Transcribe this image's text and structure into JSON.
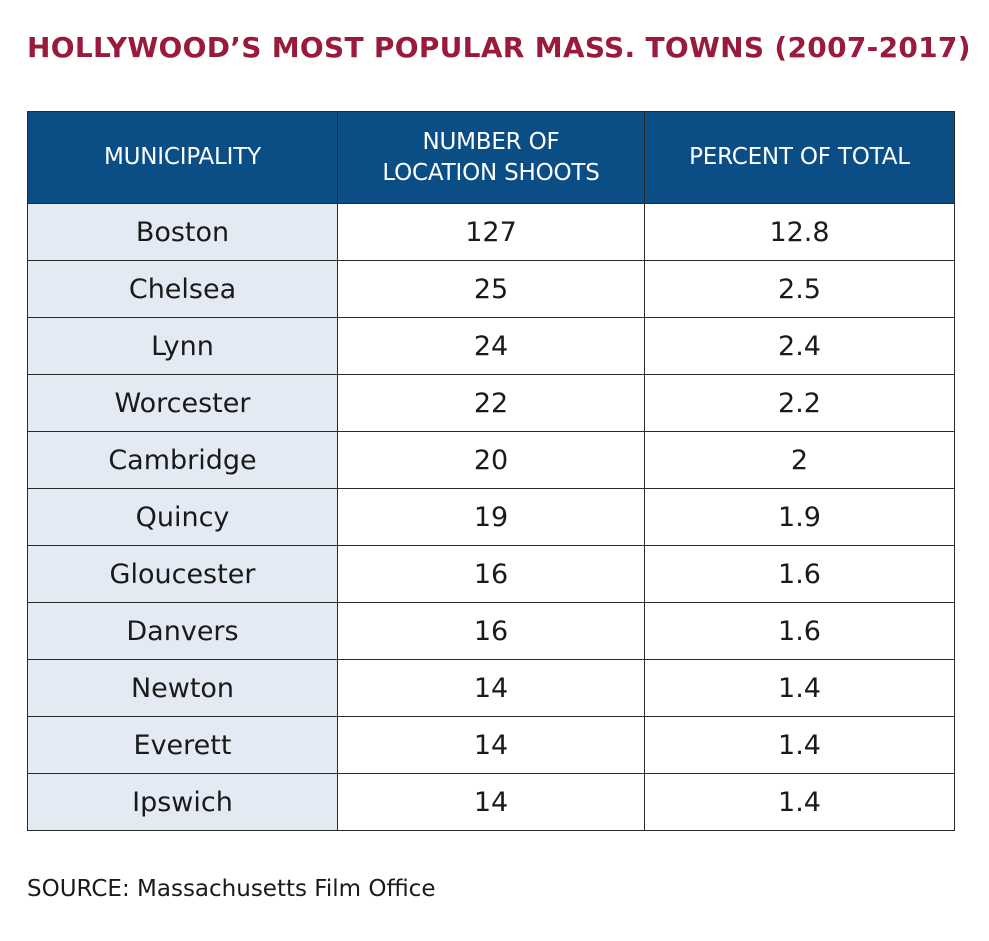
{
  "title": "HOLLYWOOD’S MOST POPULAR MASS. TOWNS (2007-2017)",
  "source": "SOURCE: Massachusetts Film Office",
  "colors": {
    "title": "#9a1a3c",
    "header_bg": "#0b4e86",
    "header_text": "#ffffff",
    "first_column_bg": "#e4eaf4",
    "border": "#2a2a2a"
  },
  "chart_data": {
    "type": "table",
    "title": "HOLLYWOOD’S MOST POPULAR MASS. TOWNS (2007-2017)",
    "columns": [
      "MUNICIPALITY",
      "NUMBER OF\nLOCATION SHOOTS",
      "PERCENT OF TOTAL"
    ],
    "rows": [
      [
        "Boston",
        "127",
        "12.8"
      ],
      [
        "Chelsea",
        "25",
        "2.5"
      ],
      [
        "Lynn",
        "24",
        "2.4"
      ],
      [
        "Worcester",
        "22",
        "2.2"
      ],
      [
        "Cambridge",
        "20",
        "2"
      ],
      [
        "Quincy",
        "19",
        "1.9"
      ],
      [
        "Gloucester",
        "16",
        "1.6"
      ],
      [
        "Danvers",
        "16",
        "1.6"
      ],
      [
        "Newton",
        "14",
        "1.4"
      ],
      [
        "Everett",
        "14",
        "1.4"
      ],
      [
        "Ipswich",
        "14",
        "1.4"
      ]
    ],
    "source": "SOURCE: Massachusetts Film Office"
  }
}
